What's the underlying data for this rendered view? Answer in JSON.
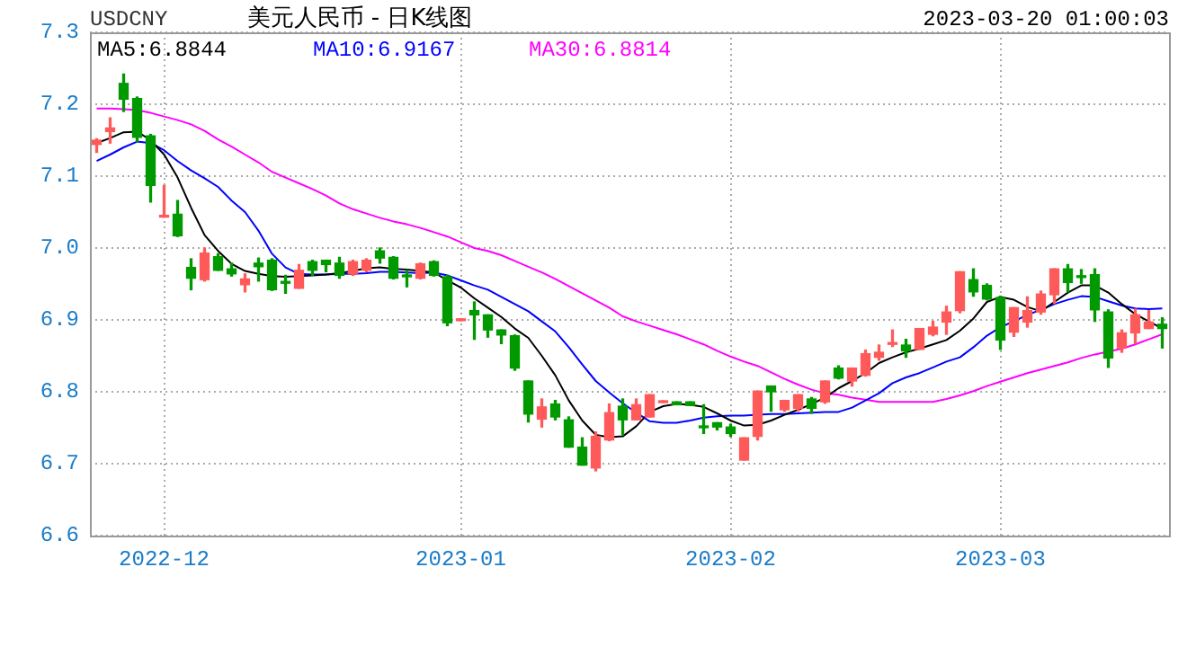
{
  "chart_data": {
    "type": "candlestick",
    "title": "美元人民币 - 日K线图",
    "subtitle": "USDCNY",
    "annotations": [
      "2023-03-20 01:00:03"
    ],
    "categories": [
      null,
      null,
      null,
      null,
      null,
      "2022-12",
      null,
      null,
      null,
      null,
      null,
      null,
      null,
      null,
      null,
      null,
      null,
      null,
      null,
      null,
      null,
      null,
      null,
      null,
      null,
      null,
      null,
      "2023-01",
      null,
      null,
      null,
      null,
      null,
      null,
      null,
      null,
      null,
      null,
      null,
      null,
      null,
      null,
      null,
      null,
      null,
      null,
      null,
      "2023-02",
      null,
      null,
      null,
      null,
      null,
      null,
      null,
      null,
      null,
      null,
      null,
      null,
      null,
      null,
      null,
      null,
      null,
      null,
      null,
      "2023-03",
      null,
      null,
      null,
      null,
      null,
      null,
      null,
      null,
      null,
      null,
      null,
      null
    ],
    "ohlc": [
      [
        7.144,
        7.152,
        7.133,
        7.15
      ],
      [
        7.162,
        7.181,
        7.146,
        7.167
      ],
      [
        7.229,
        7.242,
        7.19,
        7.207
      ],
      [
        7.208,
        7.21,
        7.148,
        7.154
      ],
      [
        7.156,
        7.158,
        7.064,
        7.087
      ],
      [
        7.043,
        7.087,
        7.043,
        7.044
      ],
      [
        7.047,
        7.066,
        7.016,
        7.017
      ],
      [
        6.973,
        6.985,
        6.942,
        6.958
      ],
      [
        6.956,
        7.0,
        6.954,
        6.993
      ],
      [
        6.988,
        6.992,
        6.969,
        6.969
      ],
      [
        6.971,
        6.979,
        6.961,
        6.964
      ],
      [
        6.949,
        6.964,
        6.939,
        6.957
      ],
      [
        6.979,
        6.986,
        6.954,
        6.974
      ],
      [
        6.983,
        6.985,
        6.941,
        6.942
      ],
      [
        6.953,
        6.962,
        6.937,
        6.951
      ],
      [
        6.944,
        6.977,
        6.944,
        6.969
      ],
      [
        6.981,
        6.983,
        6.962,
        6.969
      ],
      [
        6.983,
        6.983,
        6.967,
        6.977
      ],
      [
        6.979,
        6.987,
        6.958,
        6.962
      ],
      [
        6.964,
        6.983,
        6.962,
        6.981
      ],
      [
        6.969,
        6.985,
        6.967,
        6.983
      ],
      [
        6.996,
        7.0,
        6.979,
        6.986
      ],
      [
        6.987,
        6.988,
        6.957,
        6.958
      ],
      [
        6.962,
        6.969,
        6.946,
        6.96
      ],
      [
        6.958,
        6.979,
        6.957,
        6.978
      ],
      [
        6.981,
        6.982,
        6.961,
        6.962
      ],
      [
        6.96,
        6.962,
        6.892,
        6.896
      ],
      [
        6.899,
        6.901,
        6.899,
        6.9
      ],
      [
        6.913,
        6.925,
        6.873,
        6.907
      ],
      [
        6.907,
        6.907,
        6.876,
        6.886
      ],
      [
        6.886,
        6.886,
        6.867,
        6.879
      ],
      [
        6.878,
        6.879,
        6.83,
        6.833
      ],
      [
        6.815,
        6.815,
        6.758,
        6.769
      ],
      [
        6.762,
        6.79,
        6.751,
        6.779
      ],
      [
        6.783,
        6.788,
        6.761,
        6.765
      ],
      [
        6.761,
        6.765,
        6.723,
        6.723
      ],
      [
        6.723,
        6.736,
        6.698,
        6.698
      ],
      [
        6.694,
        6.744,
        6.69,
        6.738
      ],
      [
        6.733,
        6.783,
        6.732,
        6.771
      ],
      [
        6.78,
        6.79,
        6.74,
        6.761
      ],
      [
        6.761,
        6.79,
        6.761,
        6.782
      ],
      [
        6.765,
        6.796,
        6.765,
        6.796
      ],
      [
        6.785,
        6.786,
        6.785,
        6.786
      ],
      [
        6.786,
        6.786,
        6.782,
        6.782
      ],
      [
        6.786,
        6.786,
        6.781,
        6.781
      ],
      [
        6.752,
        6.782,
        6.742,
        6.75
      ],
      [
        6.757,
        6.757,
        6.747,
        6.751
      ],
      [
        6.751,
        6.755,
        6.738,
        6.742
      ],
      [
        6.705,
        6.736,
        6.705,
        6.736
      ],
      [
        6.738,
        6.801,
        6.733,
        6.801
      ],
      [
        6.808,
        6.808,
        6.773,
        6.8
      ],
      [
        6.775,
        6.788,
        6.773,
        6.788
      ],
      [
        6.777,
        6.796,
        6.773,
        6.796
      ],
      [
        6.79,
        6.792,
        6.77,
        6.777
      ],
      [
        6.786,
        6.815,
        6.784,
        6.815
      ],
      [
        6.833,
        6.836,
        6.818,
        6.819
      ],
      [
        6.815,
        6.833,
        6.808,
        6.833
      ],
      [
        6.823,
        6.858,
        6.822,
        6.853
      ],
      [
        6.848,
        6.865,
        6.844,
        6.855
      ],
      [
        6.866,
        6.886,
        6.863,
        6.867
      ],
      [
        6.865,
        6.873,
        6.848,
        6.857
      ],
      [
        6.859,
        6.888,
        6.859,
        6.888
      ],
      [
        6.88,
        6.898,
        6.878,
        6.89
      ],
      [
        6.897,
        6.919,
        6.88,
        6.911
      ],
      [
        6.913,
        6.967,
        6.91,
        6.967
      ],
      [
        6.956,
        6.971,
        6.933,
        6.939
      ],
      [
        6.948,
        6.95,
        6.928,
        6.929
      ],
      [
        6.931,
        6.933,
        6.859,
        6.872
      ],
      [
        6.883,
        6.917,
        6.877,
        6.917
      ],
      [
        6.897,
        6.932,
        6.89,
        6.913
      ],
      [
        6.911,
        6.94,
        6.908,
        6.936
      ],
      [
        6.935,
        6.971,
        6.923,
        6.971
      ],
      [
        6.971,
        6.977,
        6.939,
        6.952
      ],
      [
        6.961,
        6.97,
        6.951,
        6.959
      ],
      [
        6.963,
        6.971,
        6.898,
        6.914
      ],
      [
        6.911,
        6.914,
        6.834,
        6.847
      ],
      [
        6.861,
        6.886,
        6.855,
        6.882
      ],
      [
        6.882,
        6.915,
        6.867,
        6.907
      ],
      [
        6.888,
        6.913,
        6.888,
        6.897
      ],
      [
        6.894,
        6.903,
        6.861,
        6.888
      ]
    ],
    "colors": [
      "#ff5a5a",
      "#ff5a5a",
      "#009900",
      "#009900",
      "#009900",
      "#ff5a5a",
      "#009900",
      "#009900",
      "#ff5a5a",
      "#009900",
      "#009900",
      "#ff5a5a",
      "#009900",
      "#009900",
      "#009900",
      "#ff5a5a",
      "#009900",
      "#009900",
      "#009900",
      "#ff5a5a",
      "#ff5a5a",
      "#009900",
      "#009900",
      "#009900",
      "#ff5a5a",
      "#009900",
      "#009900",
      "#ff5a5a",
      "#009900",
      "#009900",
      "#009900",
      "#009900",
      "#009900",
      "#ff5a5a",
      "#009900",
      "#009900",
      "#009900",
      "#ff5a5a",
      "#ff5a5a",
      "#009900",
      "#ff5a5a",
      "#ff5a5a",
      "#ff5a5a",
      "#009900",
      "#009900",
      "#009900",
      "#009900",
      "#009900",
      "#ff5a5a",
      "#ff5a5a",
      "#009900",
      "#ff5a5a",
      "#ff5a5a",
      "#009900",
      "#ff5a5a",
      "#009900",
      "#ff5a5a",
      "#ff5a5a",
      "#ff5a5a",
      "#ff5a5a",
      "#009900",
      "#ff5a5a",
      "#ff5a5a",
      "#ff5a5a",
      "#ff5a5a",
      "#009900",
      "#009900",
      "#009900",
      "#ff5a5a",
      "#ff5a5a",
      "#ff5a5a",
      "#ff5a5a",
      "#009900",
      "#009900",
      "#009900",
      "#009900",
      "#ff5a5a",
      "#ff5a5a",
      "#ff5a5a",
      "#009900"
    ],
    "series": [
      {
        "name": "MA5:6.8844",
        "type": "line",
        "color": "#000000",
        "values": [
          7.146,
          7.153,
          7.161,
          7.162,
          7.15,
          7.13,
          7.098,
          7.056,
          7.018,
          6.996,
          6.978,
          6.968,
          6.964,
          6.961,
          6.96,
          6.961,
          6.962,
          6.963,
          6.965,
          6.968,
          6.972,
          6.973,
          6.971,
          6.97,
          6.968,
          6.966,
          6.955,
          6.945,
          6.93,
          6.917,
          6.904,
          6.888,
          6.875,
          6.85,
          6.823,
          6.788,
          6.76,
          6.74,
          6.737,
          6.738,
          6.752,
          6.772,
          6.78,
          6.783,
          6.782,
          6.779,
          6.77,
          6.76,
          6.753,
          6.754,
          6.76,
          6.768,
          6.775,
          6.783,
          6.792,
          6.805,
          6.815,
          6.826,
          6.84,
          6.848,
          6.855,
          6.86,
          6.866,
          6.872,
          6.885,
          6.902,
          6.925,
          6.932,
          6.928,
          6.918,
          6.912,
          6.925,
          6.938,
          6.948,
          6.948,
          6.938,
          6.922,
          6.908,
          6.898,
          6.888
        ]
      },
      {
        "name": "MA10:6.9167",
        "type": "line",
        "color": "#0000ff",
        "values": [
          7.121,
          7.13,
          7.14,
          7.148,
          7.146,
          7.136,
          7.121,
          7.108,
          7.097,
          7.085,
          7.066,
          7.05,
          7.024,
          6.992,
          6.973,
          6.964,
          6.963,
          6.963,
          6.964,
          6.964,
          6.965,
          6.967,
          6.967,
          6.966,
          6.965,
          6.966,
          6.962,
          6.955,
          6.948,
          6.942,
          6.932,
          6.922,
          6.912,
          6.898,
          6.884,
          6.862,
          6.838,
          6.815,
          6.799,
          6.784,
          6.771,
          6.759,
          6.757,
          6.757,
          6.76,
          6.764,
          6.766,
          6.767,
          6.767,
          6.768,
          6.769,
          6.769,
          6.77,
          6.771,
          6.772,
          6.772,
          6.778,
          6.788,
          6.798,
          6.812,
          6.82,
          6.826,
          6.834,
          6.842,
          6.848,
          6.862,
          6.878,
          6.89,
          6.898,
          6.907,
          6.914,
          6.922,
          6.928,
          6.933,
          6.932,
          6.926,
          6.92,
          6.916,
          6.915,
          6.916
        ]
      },
      {
        "name": "MA30:6.8814",
        "type": "line",
        "color": "#ff00ff",
        "values": [
          7.194,
          7.194,
          7.193,
          7.192,
          7.188,
          7.183,
          7.178,
          7.172,
          7.163,
          7.151,
          7.141,
          7.13,
          7.119,
          7.106,
          7.098,
          7.09,
          7.082,
          7.073,
          7.062,
          7.054,
          7.048,
          7.042,
          7.037,
          7.033,
          7.028,
          7.022,
          7.016,
          7.008,
          7.0,
          6.996,
          6.99,
          6.982,
          6.974,
          6.966,
          6.957,
          6.947,
          6.937,
          6.927,
          6.917,
          6.905,
          6.898,
          6.892,
          6.886,
          6.88,
          6.873,
          6.866,
          6.857,
          6.849,
          6.842,
          6.836,
          6.827,
          6.818,
          6.81,
          6.803,
          6.798,
          6.796,
          6.792,
          6.789,
          6.786,
          6.786,
          6.786,
          6.786,
          6.786,
          6.79,
          6.795,
          6.801,
          6.808,
          6.814,
          6.82,
          6.826,
          6.831,
          6.836,
          6.841,
          6.847,
          6.852,
          6.856,
          6.86,
          6.866,
          6.873,
          6.88
        ]
      }
    ],
    "ylim": [
      6.6,
      7.3
    ],
    "yticks": [
      6.6,
      6.7,
      6.8,
      6.9,
      {
        "value": 7,
        "label": "7.0"
      },
      7.1,
      7.2,
      7.3
    ],
    "grid": true,
    "legend": "top left"
  }
}
